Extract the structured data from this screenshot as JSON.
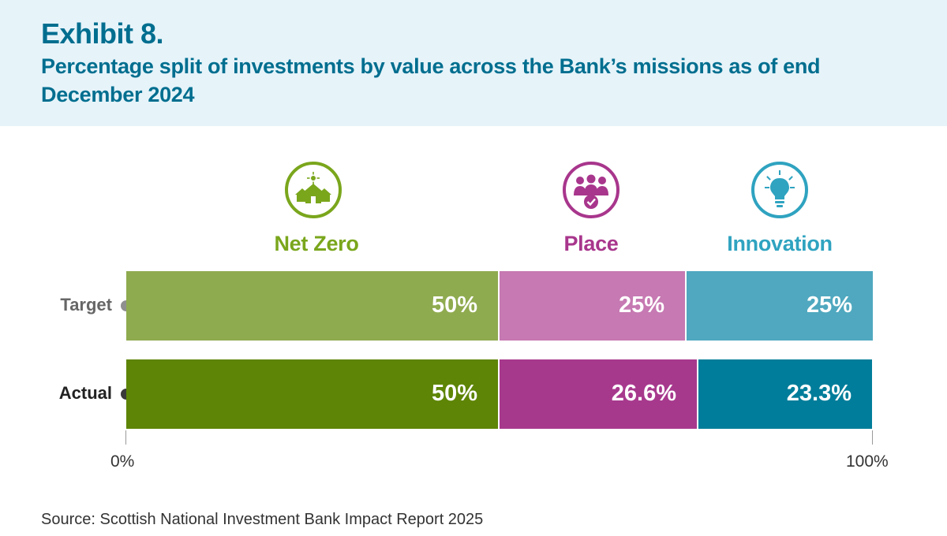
{
  "header": {
    "exhibit": "Exhibit 8.",
    "subtitle": "Percentage split of investments by value across the Bank’s missions as of end December 2024"
  },
  "missions": [
    {
      "name": "Net Zero",
      "icon": "houses-sun-icon",
      "color": "#7aa61c"
    },
    {
      "name": "Place",
      "icon": "people-group-icon",
      "color": "#a8368c"
    },
    {
      "name": "Innovation",
      "icon": "lightbulb-icon",
      "color": "#2fa3c0"
    }
  ],
  "chart_data": {
    "type": "bar",
    "orientation": "horizontal",
    "stacked": true,
    "categories": [
      "Target",
      "Actual"
    ],
    "series": [
      {
        "name": "Net Zero",
        "values": [
          50,
          50
        ],
        "labels": [
          "50%",
          "50%"
        ],
        "colors": [
          "#8fab4f",
          "#5e8505"
        ]
      },
      {
        "name": "Place",
        "values": [
          25,
          26.6
        ],
        "labels": [
          "25%",
          "26.6%"
        ],
        "colors": [
          "#c679b2",
          "#a7398d"
        ]
      },
      {
        "name": "Innovation",
        "values": [
          25,
          23.3
        ],
        "labels": [
          "25%",
          "23.3%"
        ],
        "colors": [
          "#4fa8bf",
          "#007d9a"
        ]
      }
    ],
    "row_dot_colors": [
      "#8f8f8f",
      "#3a3a3a"
    ],
    "row_label_colors": [
      "#666666",
      "#222222"
    ],
    "xlim": [
      0,
      100
    ],
    "tick_labels": [
      "0%",
      "100%"
    ]
  },
  "source": "Source: Scottish National Investment Bank Impact Report 2025"
}
